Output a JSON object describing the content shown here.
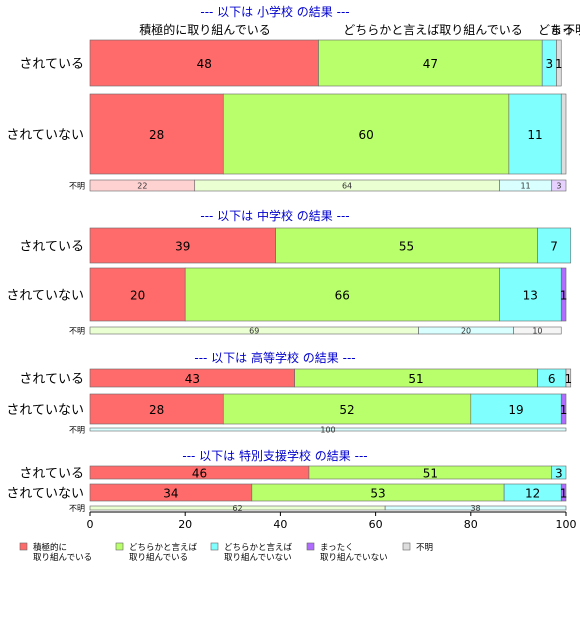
{
  "chart_data": {
    "type": "bar",
    "orientation": "horizontal",
    "stacked": "percent",
    "xlim": [
      0,
      100
    ],
    "xticks": [
      0,
      20,
      40,
      60,
      80,
      100
    ],
    "top_labels": [
      "積極的に取り組んでいる",
      "どちらかと言えば取り組んでいる",
      "どち",
      "まっ",
      "不明"
    ],
    "colors": {
      "積極的に取り組んでいる": "#ff6b6b",
      "どちらかと言えば取り組んでいる": "#b8ff6b",
      "どちらかと言えば取り組んでいない": "#80ffff",
      "まったく取り組んでいない": "#b06bff",
      "不明": "#dddddd"
    },
    "series_order": [
      "積極的に取り組んでいる",
      "どちらかと言えば取り組んでいる",
      "どちらかと言えば取り組んでいない",
      "まったく取り組んでいない",
      "不明"
    ],
    "legend": [
      {
        "key": "積極的に取り組んでいる",
        "label": "積極的に\n取り組んでいる"
      },
      {
        "key": "どちらかと言えば取り組んでいる",
        "label": "どちらかと言えば\n取り組んでいる"
      },
      {
        "key": "どちらかと言えば取り組んでいない",
        "label": "どちらかと言えば\n取り組んでいない"
      },
      {
        "key": "まったく取り組んでいない",
        "label": "まったく\n取り組んでいない"
      },
      {
        "key": "不明",
        "label": "不明"
      }
    ],
    "groups": [
      {
        "title": "--- 以下は 小学校 の結果 ---",
        "rows": [
          {
            "label": "されている",
            "values": [
              48,
              47,
              3,
              0,
              1
            ],
            "shown": [
              "48",
              "47",
              "3",
              "",
              "1"
            ]
          },
          {
            "label": "されていない",
            "values": [
              28,
              60,
              11,
              0,
              1
            ],
            "shown": [
              "28",
              "60",
              "11",
              "",
              ""
            ]
          },
          {
            "label": "不明",
            "small": true,
            "values": [
              22,
              64,
              11,
              3,
              0
            ],
            "shown": [
              "22",
              "64",
              "11",
              "3",
              ""
            ]
          }
        ]
      },
      {
        "title": "--- 以下は 中学校 の結果 ---",
        "rows": [
          {
            "label": "されている",
            "values": [
              39,
              55,
              7,
              0,
              0
            ],
            "shown": [
              "39",
              "55",
              "7",
              "",
              ""
            ]
          },
          {
            "label": "されていない",
            "values": [
              20,
              66,
              13,
              1,
              0
            ],
            "shown": [
              "20",
              "66",
              "13",
              "1",
              ""
            ]
          },
          {
            "label": "不明",
            "small": true,
            "values": [
              0,
              69,
              20,
              0,
              10
            ],
            "shown": [
              "",
              "69",
              "20",
              "",
              "10"
            ]
          }
        ]
      },
      {
        "title": "--- 以下は 高等学校 の結果 ---",
        "rows": [
          {
            "label": "されている",
            "values": [
              43,
              51,
              6,
              0,
              1
            ],
            "shown": [
              "43",
              "51",
              "6",
              "",
              "1"
            ]
          },
          {
            "label": "されていない",
            "values": [
              28,
              52,
              19,
              1,
              0
            ],
            "shown": [
              "28",
              "52",
              "19",
              "1",
              ""
            ]
          },
          {
            "label": "不明",
            "small": true,
            "values": [
              0,
              0,
              100,
              0,
              0
            ],
            "shown": [
              "",
              "",
              "100",
              "",
              ""
            ]
          }
        ]
      },
      {
        "title": "--- 以下は 特別支援学校 の結果 ---",
        "rows": [
          {
            "label": "されている",
            "values": [
              46,
              51,
              3,
              0,
              0
            ],
            "shown": [
              "46",
              "51",
              "3",
              "",
              ""
            ]
          },
          {
            "label": "されていない",
            "values": [
              34,
              53,
              12,
              1,
              0
            ],
            "shown": [
              "34",
              "53",
              "12",
              "1",
              ""
            ]
          },
          {
            "label": "不明",
            "small": true,
            "values": [
              0,
              62,
              38,
              0,
              0
            ],
            "shown": [
              "",
              "62",
              "38",
              "",
              ""
            ]
          }
        ]
      }
    ]
  }
}
